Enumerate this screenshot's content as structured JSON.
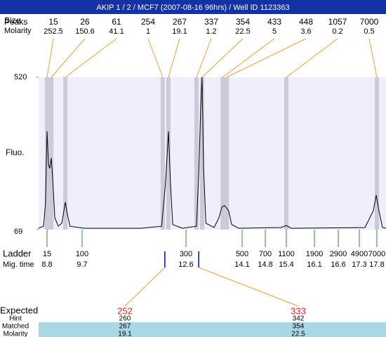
{
  "header": {
    "title": "AKIP 1 / 2 / MCF7 (2007-08-16 96hrs) / Well ID 1123363"
  },
  "chart_data": {
    "type": "line",
    "ylabel": "Fluo.",
    "ylim": [
      69,
      520
    ],
    "yticks": [
      69,
      520
    ],
    "xlim": [
      8.58,
      18.06
    ],
    "color": "#000000",
    "x": [
      8.58,
      8.71,
      8.76,
      8.8,
      8.84,
      8.87,
      8.91,
      8.94,
      9.0,
      9.09,
      9.18,
      9.27,
      9.32,
      9.39,
      9.76,
      11.33,
      11.92,
      12.03,
      12.11,
      12.17,
      12.23,
      12.5,
      12.88,
      12.94,
      12.99,
      13.03,
      13.07,
      13.13,
      13.35,
      13.48,
      13.56,
      13.63,
      13.74,
      13.82,
      14.01,
      15.24,
      15.4,
      15.52,
      17.46,
      17.7,
      17.78,
      17.86,
      17.96,
      18.06
    ],
    "values": [
      73,
      79,
      146,
      360,
      260,
      250,
      281,
      229,
      104,
      79,
      88,
      150,
      115,
      79,
      73,
      73,
      79,
      208,
      360,
      198,
      84,
      73,
      79,
      229,
      416,
      520,
      250,
      88,
      75,
      104,
      136,
      140,
      125,
      84,
      73,
      75,
      81,
      73,
      75,
      125,
      171,
      125,
      75,
      73
    ],
    "peaks": {
      "labels": [
        "Peaks",
        "Size",
        "Molarity"
      ],
      "sizes": [
        15,
        26,
        61,
        254,
        267,
        337,
        354,
        433,
        448,
        1057,
        7000
      ],
      "molarity": [
        252.5,
        150.6,
        41.1,
        1,
        19.1,
        1.2,
        22.5,
        5,
        3.6,
        0.2,
        0.5
      ],
      "times": [
        8.8,
        8.91,
        9.27,
        11.95,
        12.11,
        12.88,
        13.03,
        13.58,
        13.69,
        15.4,
        17.8
      ]
    },
    "ladder": {
      "label": "Ladder",
      "time_label": "Mig. time",
      "sizes": [
        15,
        100,
        300,
        500,
        700,
        1100,
        1900,
        2900,
        4900,
        7000
      ],
      "times": [
        8.8,
        9.7,
        12.6,
        14.1,
        14.8,
        15.4,
        16.1,
        16.6,
        17.3,
        17.8
      ]
    },
    "expected": {
      "label": "Expected",
      "values": [
        252,
        333
      ],
      "times": [
        12.01,
        12.94
      ],
      "rows": [
        {
          "label": "Hint",
          "values": [
            260,
            342
          ]
        },
        {
          "label": "Matched",
          "values": [
            267,
            354
          ]
        },
        {
          "label": "Molarity",
          "values": [
            19.1,
            22.5
          ]
        }
      ]
    }
  }
}
